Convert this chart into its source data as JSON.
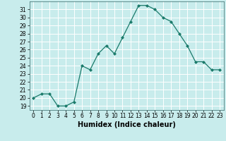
{
  "x": [
    0,
    1,
    2,
    3,
    4,
    5,
    6,
    7,
    8,
    9,
    10,
    11,
    12,
    13,
    14,
    15,
    16,
    17,
    18,
    19,
    20,
    21,
    22,
    23
  ],
  "y": [
    20,
    20.5,
    20.5,
    19,
    19,
    19.5,
    24,
    23.5,
    25.5,
    26.5,
    25.5,
    27.5,
    29.5,
    31.5,
    31.5,
    31,
    30,
    29.5,
    28,
    26.5,
    24.5,
    24.5,
    23.5,
    23.5
  ],
  "xlabel": "Humidex (Indice chaleur)",
  "xlim": [
    -0.5,
    23.5
  ],
  "ylim": [
    18.5,
    32
  ],
  "yticks": [
    19,
    20,
    21,
    22,
    23,
    24,
    25,
    26,
    27,
    28,
    29,
    30,
    31
  ],
  "xticks": [
    0,
    1,
    2,
    3,
    4,
    5,
    6,
    7,
    8,
    9,
    10,
    11,
    12,
    13,
    14,
    15,
    16,
    17,
    18,
    19,
    20,
    21,
    22,
    23
  ],
  "line_color": "#1a7a6a",
  "marker": "D",
  "marker_size": 2.0,
  "bg_color": "#c8ecec",
  "grid_color": "#ffffff",
  "xlabel_fontsize": 7,
  "tick_fontsize": 5.5
}
